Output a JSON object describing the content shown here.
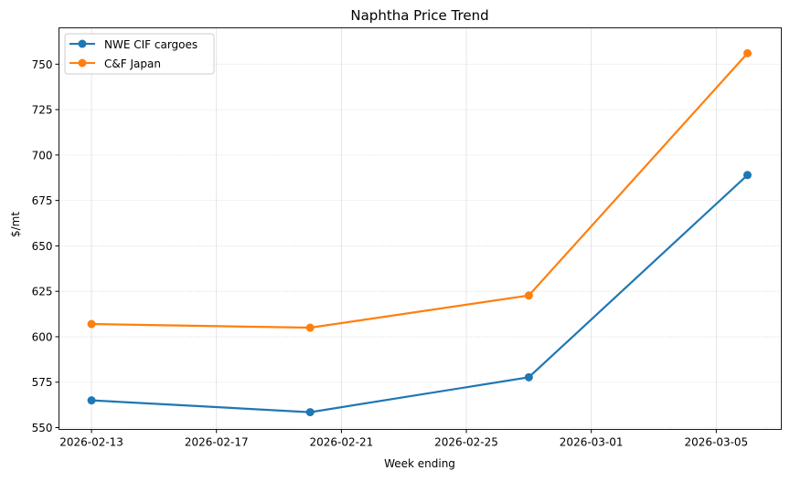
{
  "chart_data": {
    "type": "line",
    "title": "Naphtha Price Trend",
    "xlabel": "Week ending",
    "ylabel": "$/mt",
    "x": [
      "2026-02-13",
      "2026-02-20",
      "2026-02-27",
      "2026-03-06"
    ],
    "xticks": [
      "2026-02-13",
      "2026-02-17",
      "2026-02-21",
      "2026-02-25",
      "2026-03-01",
      "2026-03-05"
    ],
    "yticks": [
      550,
      575,
      600,
      625,
      650,
      675,
      700,
      725,
      750
    ],
    "xlim": [
      "2026-02-11T23:00",
      "2026-03-07T02:00"
    ],
    "ylim": [
      549,
      770
    ],
    "grid": true,
    "legend": "top-left",
    "series": [
      {
        "name": "NWE CIF cargoes",
        "color": "#1f77b4",
        "values": [
          565,
          558.5,
          577.7,
          689
        ]
      },
      {
        "name": "C&F Japan",
        "color": "#ff7f0e",
        "values": [
          607,
          605,
          622.7,
          756
        ]
      }
    ]
  }
}
